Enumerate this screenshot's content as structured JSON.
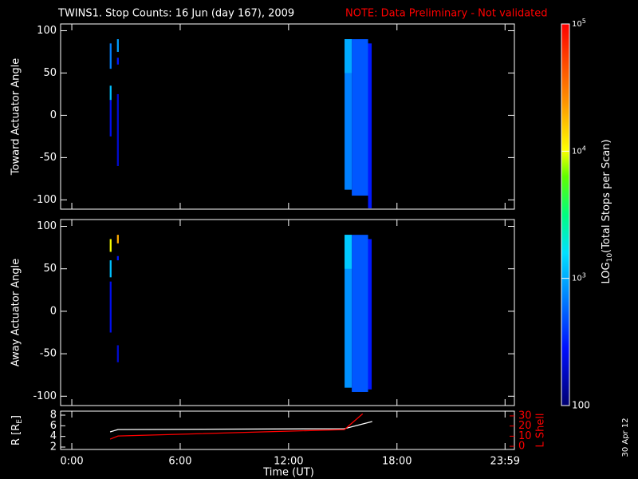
{
  "title": {
    "text": "TWINS1. Stop Counts: 16 Jun (day 167), 2009",
    "note": "NOTE: Data Preliminary - Not validated"
  },
  "date_stamp": "30 Apr 12",
  "chart_data": [
    {
      "type": "heatmap",
      "ylabel": "Toward Actuator Angle",
      "ylim": [
        -111,
        108
      ],
      "yticks": [
        -100,
        -50,
        0,
        50,
        100
      ],
      "cells": [
        {
          "t": [
            2.1,
            2.2
          ],
          "angle": [
            55,
            85
          ],
          "value": 700
        },
        {
          "t": [
            2.1,
            2.2
          ],
          "angle": [
            18,
            35
          ],
          "value": 1200
        },
        {
          "t": [
            2.1,
            2.2
          ],
          "angle": [
            -25,
            18
          ],
          "value": 250
        },
        {
          "t": [
            2.5,
            2.6
          ],
          "angle": [
            75,
            90
          ],
          "value": 900
        },
        {
          "t": [
            2.5,
            2.6
          ],
          "angle": [
            60,
            68
          ],
          "value": 300
        },
        {
          "t": [
            2.5,
            2.6
          ],
          "angle": [
            -60,
            25
          ],
          "value": 200
        },
        {
          "t": [
            15.1,
            15.5
          ],
          "angle": [
            -88,
            90
          ],
          "value": 700
        },
        {
          "t": [
            15.1,
            15.5
          ],
          "angle": [
            50,
            90
          ],
          "value": 1000
        },
        {
          "t": [
            15.5,
            16.4
          ],
          "angle": [
            -95,
            90
          ],
          "value": 500
        },
        {
          "t": [
            16.4,
            16.6
          ],
          "angle": [
            -110,
            85
          ],
          "value": 300
        }
      ]
    },
    {
      "type": "heatmap",
      "ylabel": "Away Actuator Angle",
      "ylim": [
        -111,
        108
      ],
      "yticks": [
        -100,
        -50,
        0,
        50,
        100
      ],
      "cells": [
        {
          "t": [
            2.1,
            2.2
          ],
          "angle": [
            70,
            85
          ],
          "value": 10000
        },
        {
          "t": [
            2.1,
            2.2
          ],
          "angle": [
            40,
            60
          ],
          "value": 1200
        },
        {
          "t": [
            2.1,
            2.2
          ],
          "angle": [
            -25,
            35
          ],
          "value": 250
        },
        {
          "t": [
            2.5,
            2.6
          ],
          "angle": [
            80,
            90
          ],
          "value": 20000
        },
        {
          "t": [
            2.5,
            2.6
          ],
          "angle": [
            60,
            65
          ],
          "value": 300
        },
        {
          "t": [
            2.5,
            2.6
          ],
          "angle": [
            -60,
            -40
          ],
          "value": 200
        },
        {
          "t": [
            15.1,
            15.5
          ],
          "angle": [
            -90,
            90
          ],
          "value": 800
        },
        {
          "t": [
            15.1,
            15.5
          ],
          "angle": [
            50,
            90
          ],
          "value": 1300
        },
        {
          "t": [
            15.5,
            16.4
          ],
          "angle": [
            -95,
            90
          ],
          "value": 500
        },
        {
          "t": [
            16.4,
            16.6
          ],
          "angle": [
            -92,
            85
          ],
          "value": 300
        }
      ]
    },
    {
      "type": "line",
      "ylabel": [
        "R [R",
        "E",
        "]"
      ],
      "y2label": "L Shell",
      "xlabel": "Time (UT)",
      "xlim": [
        -0.62,
        24.5
      ],
      "xticks": [
        {
          "value": 0,
          "label": "0:00"
        },
        {
          "value": 6,
          "label": "6:00"
        },
        {
          "value": 12,
          "label": "12:00"
        },
        {
          "value": 18,
          "label": "18:00"
        },
        {
          "value": 23.983,
          "label": "23:59"
        }
      ],
      "ylim": [
        1.55,
        8.75
      ],
      "yticks": [
        2,
        4,
        6,
        8
      ],
      "y2lim": [
        -3.1,
        34.7
      ],
      "y2ticks": [
        0,
        10,
        20,
        30
      ],
      "series": [
        {
          "color": "#ffffff",
          "x": [
            2.12,
            2.56,
            15.09,
            16.63
          ],
          "values": [
            4.85,
            5.3,
            5.45,
            6.8
          ]
        },
        {
          "color": "#ff0000",
          "axis": "y2",
          "x": [
            2.12,
            2.56,
            15.09,
            16.1
          ],
          "values": [
            7.1,
            10.2,
            16.5,
            32
          ]
        }
      ]
    },
    {
      "type": "colorbar",
      "label": [
        "LOG",
        "10",
        "(Total Stops per Scan)"
      ],
      "log": true,
      "ylim": [
        100,
        100000
      ],
      "yticks": [
        100,
        {
          "value": 1000,
          "label": [
            "10",
            "3"
          ]
        },
        {
          "value": 10000,
          "label": [
            "10",
            "4"
          ]
        },
        {
          "value": 100000,
          "label": [
            "10",
            "5"
          ]
        }
      ]
    }
  ]
}
